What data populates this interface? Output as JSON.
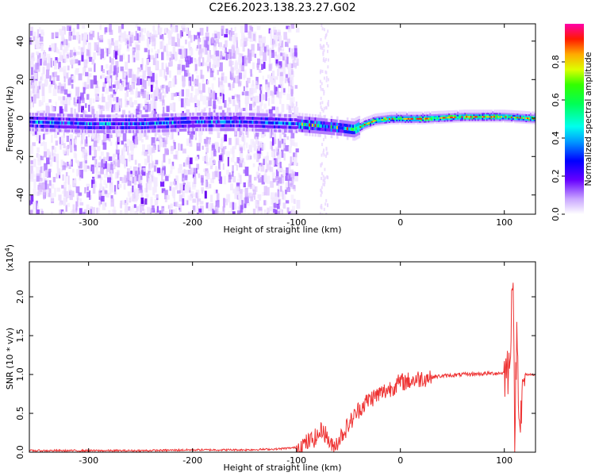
{
  "title": "C2E6.2023.138.23.27.G02",
  "chart_data": [
    {
      "type": "heatmap",
      "xlabel": "Height of straight line (km)",
      "ylabel": "Frequency (Hz)",
      "xlim": [
        -357,
        130
      ],
      "ylim": [
        -50,
        49
      ],
      "x_ticks": [
        -300,
        -200,
        -100,
        0,
        100
      ],
      "y_ticks": [
        40,
        20,
        0,
        -20,
        -40
      ],
      "x_tick_labels": [
        "-300",
        "-200",
        "-100",
        "0",
        "100"
      ],
      "y_tick_labels": [
        "40",
        "20",
        "0",
        "-20",
        "-40"
      ],
      "colorbar": {
        "label": "Normalized spectral amplitude",
        "range": [
          0,
          1
        ],
        "ticks": [
          0.0,
          0.2,
          0.4,
          0.6,
          0.8
        ],
        "tick_labels": [
          "0.0",
          "0.2",
          "0.4",
          "0.6",
          "0.8"
        ]
      },
      "ridge": {
        "description_values": "dominant frequency vs height",
        "x": [
          -357,
          -300,
          -250,
          -200,
          -150,
          -100,
          -80,
          -60,
          -45,
          -35,
          -25,
          -10,
          0,
          20,
          60,
          100,
          130
        ],
        "y": [
          -2,
          -3,
          -3,
          -2,
          -2,
          -3,
          -4,
          -5,
          -6,
          -3,
          -1,
          0,
          0,
          0,
          1,
          1,
          0
        ]
      }
    },
    {
      "type": "line",
      "xlabel": "Height of straight line (km)",
      "ylabel": "SNR (10 * v/v)",
      "scale_note": "(x10",
      "scale_exp": "4",
      "scale_close": ")",
      "xlim": [
        -357,
        130
      ],
      "ylim": [
        0,
        2.45
      ],
      "x_ticks": [
        -300,
        -200,
        -100,
        0,
        100
      ],
      "y_ticks": [
        0.0,
        0.5,
        1.0,
        1.5,
        2.0
      ],
      "x_tick_labels": [
        "-300",
        "-200",
        "-100",
        "0",
        "100"
      ],
      "y_tick_labels": [
        "0.0",
        "0.5",
        "1.0",
        "1.5",
        "2.0"
      ],
      "color": "#ee3333",
      "series": [
        {
          "x": [
            -357,
            -300,
            -250,
            -200,
            -150,
            -120,
            -100,
            -90,
            -80,
            -75,
            -70,
            -65,
            -60,
            -50,
            -40,
            -30,
            -20,
            -10,
            0,
            10,
            20,
            30,
            40,
            60,
            80,
            100,
            105,
            108,
            110,
            112,
            115,
            120,
            130
          ],
          "y": [
            0.02,
            0.02,
            0.02,
            0.03,
            0.03,
            0.04,
            0.06,
            0.12,
            0.2,
            0.3,
            0.18,
            0.05,
            0.15,
            0.35,
            0.55,
            0.68,
            0.75,
            0.82,
            0.9,
            0.92,
            0.95,
            0.97,
            0.98,
            1.0,
            1.01,
            1.02,
            1.1,
            2.4,
            0.3,
            1.5,
            0.4,
            1.0,
            1.0
          ]
        }
      ]
    }
  ]
}
